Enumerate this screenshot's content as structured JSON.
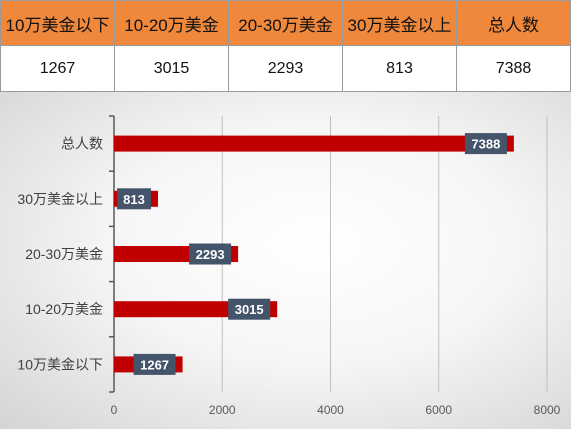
{
  "table": {
    "headers": [
      "10万美金以下",
      "10-20万美金",
      "20-30万美金",
      "30万美金以上",
      "总人数"
    ],
    "values": [
      "1267",
      "3015",
      "2293",
      "813",
      "7388"
    ]
  },
  "chart_data": {
    "type": "bar",
    "orientation": "horizontal",
    "categories": [
      "10万美金以下",
      "10-20万美金",
      "20-30万美金",
      "30万美金以上",
      "总人数"
    ],
    "values": [
      1267,
      3015,
      2293,
      813,
      7388
    ],
    "xlim": [
      0,
      8000
    ],
    "xticks": [
      0,
      2000,
      4000,
      6000,
      8000
    ],
    "grid": "vertical",
    "legend": "none",
    "colors": {
      "bar": "#c00000",
      "label_bg": "#44546a",
      "label_text": "#ffffff"
    }
  }
}
